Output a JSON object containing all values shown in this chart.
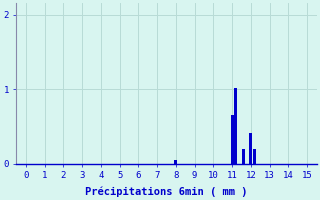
{
  "xlabel": "Précipitations 6min ( mm )",
  "bar_color": "#0000cc",
  "background_color": "#d8f5f0",
  "grid_color": "#b8dbd6",
  "axis_color": "#8888aa",
  "tick_color": "#0000cc",
  "xlim": [
    -0.5,
    15.5
  ],
  "ylim": [
    0,
    2.15
  ],
  "yticks": [
    0,
    1,
    2
  ],
  "xticks": [
    0,
    1,
    2,
    3,
    4,
    5,
    6,
    7,
    8,
    9,
    10,
    11,
    12,
    13,
    14,
    15
  ],
  "bars": [
    {
      "x": 8.0,
      "height": 0.05
    },
    {
      "x": 11.0,
      "height": 0.65
    },
    {
      "x": 11.2,
      "height": 1.02
    },
    {
      "x": 11.6,
      "height": 0.2
    },
    {
      "x": 12.0,
      "height": 0.42
    },
    {
      "x": 12.2,
      "height": 0.2
    }
  ],
  "bar_width": 0.15,
  "xlabel_fontsize": 7.5,
  "tick_fontsize": 6.5
}
